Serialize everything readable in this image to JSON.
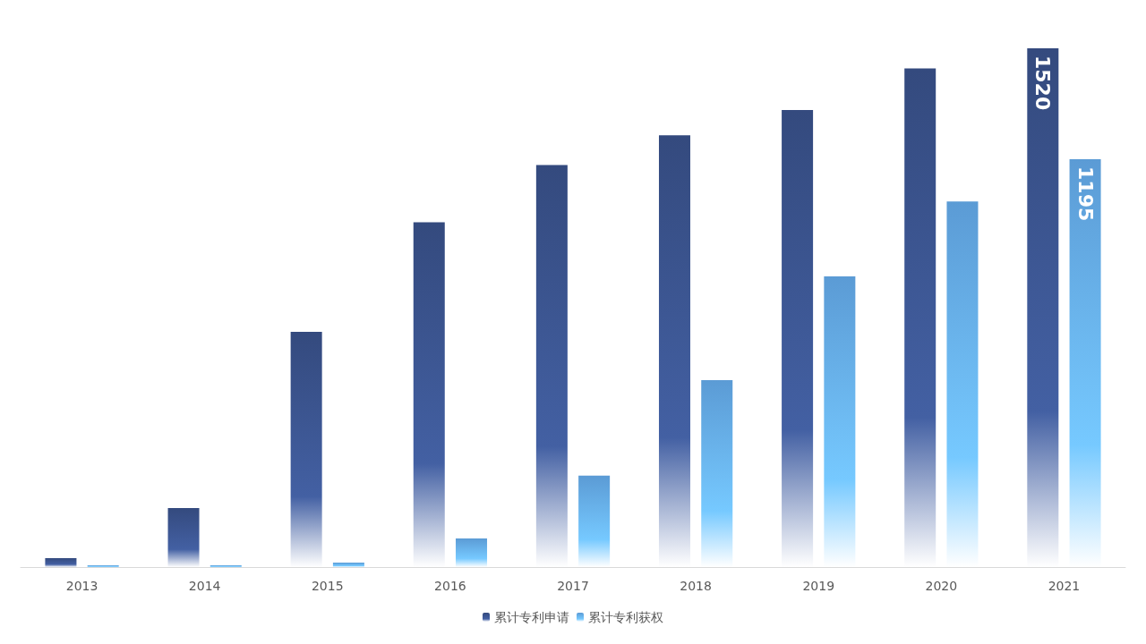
{
  "chart_data": {
    "type": "bar",
    "categories": [
      "2013",
      "2014",
      "2015",
      "2016",
      "2017",
      "2018",
      "2019",
      "2020",
      "2021"
    ],
    "series": [
      {
        "name": "累计专利申请",
        "color": "#344a7e",
        "values": [
          26,
          173,
          689,
          1010,
          1178,
          1265,
          1339,
          1461,
          1520
        ],
        "value_labels": [
          null,
          null,
          null,
          null,
          null,
          null,
          null,
          null,
          "1520"
        ]
      },
      {
        "name": "累计专利获权",
        "color": "#5b9bd5",
        "values": [
          5,
          5,
          13,
          84,
          268,
          548,
          852,
          1071,
          1195
        ],
        "value_labels": [
          null,
          null,
          null,
          null,
          null,
          null,
          null,
          null,
          "1195"
        ]
      }
    ],
    "legend": "bottom"
  }
}
